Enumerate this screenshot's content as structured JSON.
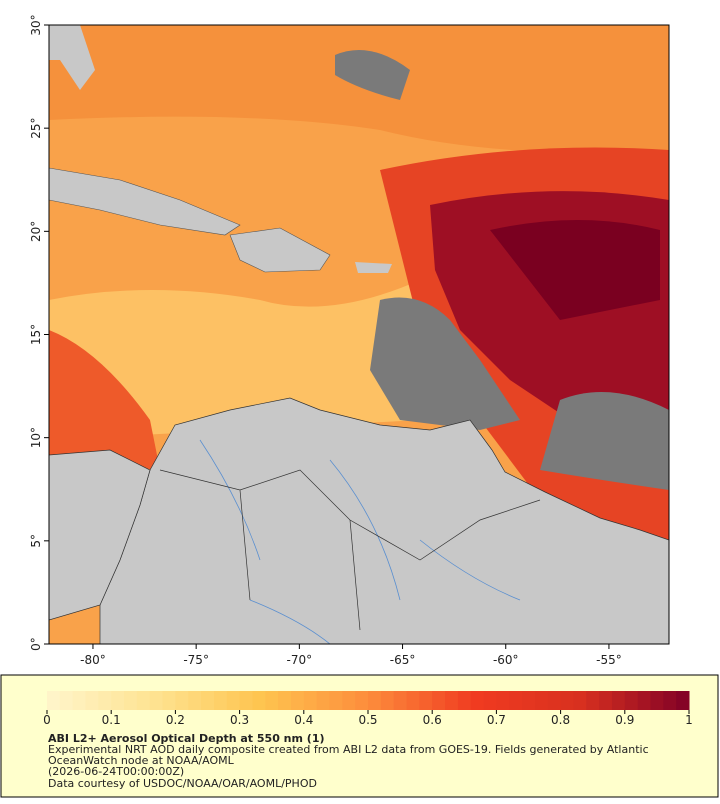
{
  "map": {
    "lonlim": [
      -82.13,
      -52.09
    ],
    "latlim": [
      0,
      30
    ],
    "lonticks": [
      {
        "value": -80,
        "label": "-80°"
      },
      {
        "value": -75,
        "label": "-75°"
      },
      {
        "value": -70,
        "label": "-70°"
      },
      {
        "value": -65,
        "label": "-65°"
      },
      {
        "value": -60,
        "label": "-60°"
      },
      {
        "value": -55,
        "label": "-55°"
      }
    ],
    "latticks": [
      {
        "value": 0,
        "label": "0°"
      },
      {
        "value": 5,
        "label": "5°"
      },
      {
        "value": 10,
        "label": "10°"
      },
      {
        "value": 15,
        "label": "15°"
      },
      {
        "value": 20,
        "label": "20°"
      },
      {
        "value": 25,
        "label": "25°"
      },
      {
        "value": 30,
        "label": "30°"
      }
    ]
  },
  "colorbar": {
    "range": [
      0,
      1
    ],
    "ticks": [
      0,
      0.1,
      0.2,
      0.3,
      0.4,
      0.5,
      0.6,
      0.7,
      0.8,
      0.9,
      1
    ],
    "colors": [
      "#fff5cc",
      "#fee391",
      "#fec44f",
      "#fd8d3c",
      "#f03b20",
      "#d7301f",
      "#800026"
    ]
  },
  "caption": {
    "title": "ABI L2+ Aerosol Optical Depth at 550 nm (1)",
    "lines": [
      "Experimental NRT AOD daily composite created from ABI L2 data from GOES-19. Fields generated by Atlantic",
      "OceanWatch node at NOAA/AOML",
      "(2026-06-24T00:00:00Z)",
      "Data courtesy of USDOC/NOAA/OAR/AOML/PHOD"
    ]
  }
}
